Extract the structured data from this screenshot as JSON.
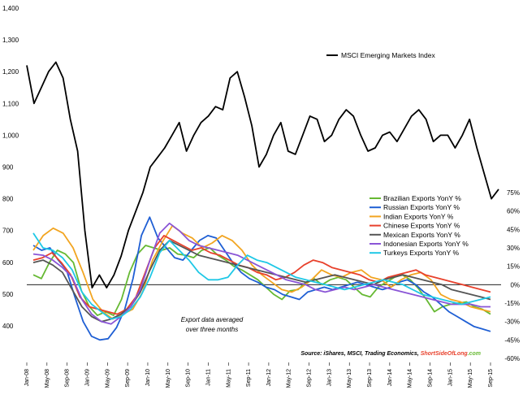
{
  "chart_data": {
    "type": "line",
    "x_labels": [
      "Jan-08",
      "May-08",
      "Sep-08",
      "Jan-09",
      "May-09",
      "Sep-09",
      "Jan-10",
      "May-10",
      "Sep-10",
      "Jan-11",
      "May-11",
      "Sep-11",
      "Jan-12",
      "May-12",
      "Sep-12",
      "Jan-13",
      "May-13",
      "Sep-13",
      "Jan-14",
      "May-14",
      "Sep-14",
      "Jan-15",
      "May-15",
      "Sep-15"
    ],
    "left_axis": {
      "ticks": [
        400,
        500,
        600,
        700,
        800,
        900,
        1000,
        1100,
        1200,
        1300,
        1400
      ],
      "tick_labels": [
        "400",
        "500",
        "600",
        "700",
        "800",
        "900",
        "1,000",
        "1,100",
        "1,200",
        "1,300",
        "1,400"
      ],
      "range": [
        400,
        1400
      ]
    },
    "right_axis": {
      "ticks": [
        -60,
        -45,
        -30,
        -15,
        0,
        15,
        30,
        45,
        60,
        75
      ],
      "tick_labels": [
        "-60%",
        "-45%",
        "-30%",
        "-15%",
        "0%",
        "15%",
        "30%",
        "45%",
        "60%",
        "75%"
      ],
      "range": [
        -60,
        75
      ]
    },
    "index_series": {
      "name": "MSCI Emerging Markets Index",
      "color": "#000000",
      "points": [
        [
          0,
          1220
        ],
        [
          1,
          1100
        ],
        [
          2,
          1150
        ],
        [
          3,
          1200
        ],
        [
          4,
          1230
        ],
        [
          5,
          1180
        ],
        [
          6,
          1050
        ],
        [
          7,
          950
        ],
        [
          8,
          700
        ],
        [
          9,
          520
        ],
        [
          10,
          560
        ],
        [
          11,
          520
        ],
        [
          12,
          560
        ],
        [
          13,
          620
        ],
        [
          14,
          700
        ],
        [
          15,
          760
        ],
        [
          16,
          820
        ],
        [
          17,
          900
        ],
        [
          18,
          930
        ],
        [
          19,
          960
        ],
        [
          20,
          1000
        ],
        [
          21,
          1040
        ],
        [
          22,
          950
        ],
        [
          23,
          1000
        ],
        [
          24,
          1040
        ],
        [
          25,
          1060
        ],
        [
          26,
          1090
        ],
        [
          27,
          1080
        ],
        [
          28,
          1180
        ],
        [
          29,
          1200
        ],
        [
          30,
          1120
        ],
        [
          31,
          1030
        ],
        [
          32,
          900
        ],
        [
          33,
          940
        ],
        [
          34,
          1000
        ],
        [
          35,
          1040
        ],
        [
          36,
          950
        ],
        [
          37,
          940
        ],
        [
          38,
          1000
        ],
        [
          39,
          1060
        ],
        [
          40,
          1050
        ],
        [
          41,
          980
        ],
        [
          42,
          1000
        ],
        [
          43,
          1050
        ],
        [
          44,
          1080
        ],
        [
          45,
          1060
        ],
        [
          46,
          1000
        ],
        [
          47,
          950
        ],
        [
          48,
          960
        ],
        [
          49,
          1000
        ],
        [
          50,
          1010
        ],
        [
          51,
          980
        ],
        [
          52,
          1020
        ],
        [
          53,
          1060
        ],
        [
          54,
          1080
        ],
        [
          55,
          1050
        ],
        [
          56,
          980
        ],
        [
          57,
          1000
        ],
        [
          58,
          1000
        ],
        [
          59,
          960
        ],
        [
          60,
          1000
        ],
        [
          61,
          1050
        ],
        [
          62,
          960
        ],
        [
          63,
          880
        ],
        [
          64,
          800
        ],
        [
          65,
          830
        ]
      ]
    },
    "export_series": [
      {
        "name": "Brazilian Exports YonY %",
        "color": "#66b933",
        "values": [
          8,
          5,
          18,
          28,
          25,
          18,
          -5,
          -18,
          -25,
          -22,
          -25,
          -12,
          10,
          25,
          32,
          30,
          28,
          30,
          25,
          24,
          22,
          28,
          30,
          24,
          20,
          15,
          12,
          8,
          4,
          -2,
          -8,
          -12,
          -5,
          -4,
          2,
          5,
          0,
          4,
          6,
          4,
          -2,
          -8,
          -10,
          -2,
          2,
          6,
          8,
          4,
          -3,
          -12,
          -22,
          -18,
          -16,
          -15,
          -14,
          -18,
          -20,
          -24
        ]
      },
      {
        "name": "Russian Exports YonY %",
        "color": "#1f5fd4",
        "values": [
          32,
          28,
          30,
          20,
          12,
          -10,
          -30,
          -42,
          -45,
          -44,
          -35,
          -20,
          5,
          40,
          55,
          38,
          30,
          22,
          20,
          28,
          36,
          40,
          38,
          28,
          18,
          10,
          5,
          2,
          -2,
          -4,
          -8,
          -10,
          -12,
          -6,
          -4,
          -2,
          -4,
          -2,
          0,
          2,
          0,
          -2,
          -4,
          -2,
          2,
          4,
          0,
          -6,
          -10,
          -16,
          -22,
          -26,
          -30,
          -34,
          -36,
          -38
        ]
      },
      {
        "name": "Indian Exports YonY %",
        "color": "#f2a521",
        "values": [
          28,
          40,
          46,
          42,
          30,
          10,
          -12,
          -22,
          -28,
          -24,
          -20,
          -6,
          20,
          35,
          48,
          42,
          38,
          30,
          34,
          40,
          36,
          28,
          16,
          8,
          2,
          -4,
          -6,
          -2,
          4,
          12,
          8,
          6,
          10,
          12,
          6,
          4,
          -2,
          4,
          8,
          10,
          4,
          -8,
          -12,
          -14,
          -18,
          -20,
          -22
        ]
      },
      {
        "name": "Chinese Exports YonY %",
        "color": "#e8412c",
        "values": [
          20,
          22,
          26,
          18,
          8,
          -10,
          -18,
          -20,
          -22,
          -24,
          -20,
          -10,
          10,
          30,
          40,
          36,
          32,
          28,
          30,
          26,
          24,
          20,
          16,
          14,
          10,
          8,
          4,
          6,
          10,
          16,
          20,
          18,
          14,
          12,
          10,
          8,
          4,
          2,
          6,
          8,
          10,
          12,
          8,
          6,
          4,
          2,
          0,
          -2,
          -4,
          -6
        ]
      },
      {
        "name": "Mexican Exports YonY %",
        "color": "#555555",
        "values": [
          18,
          20,
          16,
          10,
          -4,
          -18,
          -26,
          -30,
          -28,
          -24,
          -18,
          -6,
          12,
          28,
          36,
          32,
          28,
          24,
          22,
          20,
          18,
          16,
          14,
          12,
          10,
          8,
          6,
          4,
          2,
          4,
          6,
          8,
          6,
          4,
          2,
          0,
          4,
          6,
          8,
          6,
          4,
          2,
          0,
          -4,
          -6,
          -8,
          -10,
          -12
        ]
      },
      {
        "name": "Indonesian Exports YonY %",
        "color": "#8a55d6",
        "values": [
          25,
          24,
          20,
          14,
          6,
          -12,
          -24,
          -30,
          -32,
          -26,
          -18,
          -4,
          20,
          42,
          50,
          44,
          36,
          32,
          30,
          28,
          26,
          24,
          20,
          16,
          12,
          8,
          4,
          2,
          0,
          -4,
          -6,
          -4,
          -2,
          -4,
          -2,
          0,
          -2,
          -4,
          -6,
          -8,
          -10,
          -12,
          -14,
          -16,
          -16,
          -16,
          -18,
          -18
        ]
      },
      {
        "name": "Turkeys Exports YonY %",
        "color": "#1fc8e6",
        "values": [
          42,
          30,
          28,
          22,
          12,
          -6,
          -16,
          -22,
          -28,
          -26,
          -20,
          -10,
          6,
          26,
          36,
          28,
          20,
          10,
          4,
          4,
          6,
          16,
          24,
          20,
          18,
          14,
          10,
          6,
          4,
          2,
          0,
          -2,
          -4,
          -2,
          0,
          2,
          4,
          2,
          0,
          -4,
          -8,
          -10,
          -12,
          -14,
          -16,
          -14,
          -12,
          -10
        ]
      }
    ],
    "annotation": "Export data averaged over three months",
    "zero_line": true,
    "legend_position": "right-middle"
  },
  "labels": {
    "source_prefix": "Source: iShares, MSCI, Trading Economics, ",
    "source_brand_a": "ShortSide",
    "source_brand_b": "OfLong",
    "source_brand_c": ".com"
  }
}
